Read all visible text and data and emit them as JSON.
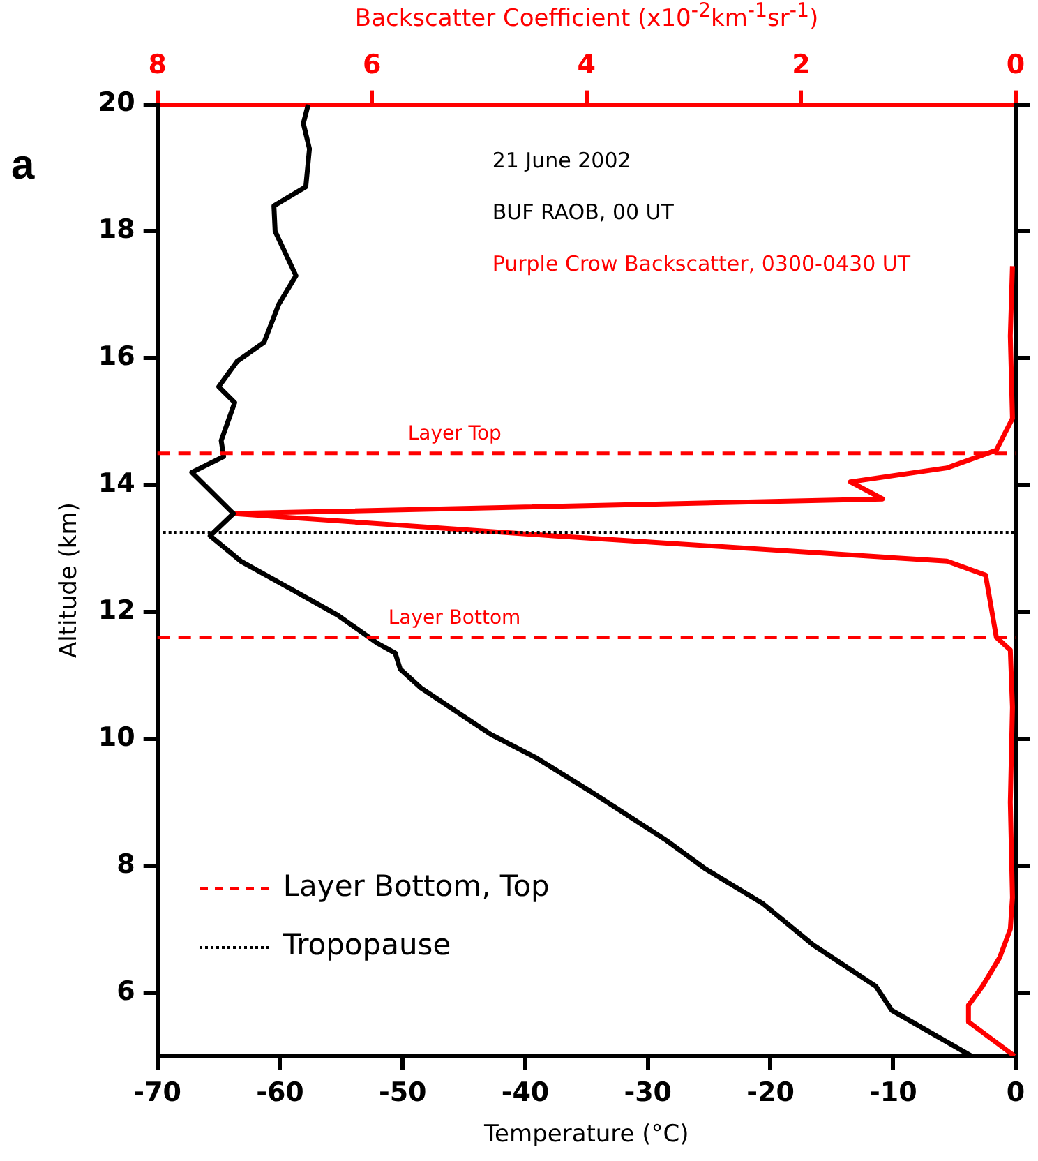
{
  "chart_data": {
    "type": "line",
    "xlabel": "Temperature (°C)",
    "ylabel": "Altitude (km)",
    "x2label": "Backscatter Coefficient (x10$^{-2}$km$^{-1}$sr$^{-1}$)",
    "xlim": [
      -70,
      0
    ],
    "xticks": [
      -70,
      -60,
      -50,
      -40,
      -30,
      -20,
      -10,
      0
    ],
    "x2lim": [
      8,
      0
    ],
    "x2ticks": [
      8,
      6,
      4,
      2,
      0
    ],
    "ylim": [
      5,
      20
    ],
    "yticks": [
      6,
      8,
      10,
      12,
      14,
      16,
      18,
      20
    ],
    "grid": false,
    "marker": "none",
    "line_style": "solid",
    "series": [
      {
        "color": "#000000",
        "x": [
          -57.7,
          -58.1,
          -57.6,
          -57.9,
          -60.5,
          -60.4,
          -58.7,
          -60.1,
          -61.3,
          -63.5,
          -65.0,
          -63.7,
          -64.8,
          -64.6,
          -67.2,
          -63.8,
          -65.7,
          -63.2,
          -59.0,
          -55.3,
          -52.0,
          -50.6,
          -50.2,
          -48.5,
          -42.8,
          -39.1,
          -34.5,
          -28.5,
          -25.3,
          -20.6,
          -16.5,
          -11.4,
          -10.1,
          -3.6
        ],
        "values": [
          20,
          19.7,
          19.3,
          18.7,
          18.4,
          18.0,
          17.3,
          16.85,
          16.25,
          15.95,
          15.55,
          15.3,
          14.7,
          14.45,
          14.2,
          13.55,
          13.2,
          12.8,
          12.35,
          11.95,
          11.5,
          11.35,
          11.1,
          10.8,
          10.07,
          9.7,
          9.15,
          8.4,
          7.95,
          7.4,
          6.75,
          6.1,
          5.72,
          5.0
        ]
      },
      {
        "color": "#ff0000",
        "axis": "x2",
        "x": [
          0.03,
          0.05,
          0.03,
          0.18,
          0.64,
          1.54,
          1.24,
          7.3,
          4.31,
          0.64,
          0.28,
          0.18,
          0.05,
          0.03,
          0.05,
          0.03,
          0.05,
          0.15,
          0.31,
          0.44,
          0.44,
          0.01
        ],
        "values": [
          17.45,
          16.35,
          15.05,
          14.55,
          14.27,
          14.05,
          13.78,
          13.55,
          13.2,
          12.8,
          12.58,
          11.6,
          11.4,
          10.5,
          9.0,
          7.5,
          7.0,
          6.55,
          6.1,
          5.8,
          5.54,
          5.0
        ]
      }
    ],
    "ref_lines": [
      {
        "axis": "y",
        "value": 14.5,
        "label": "Layer Top",
        "color": "#ff0000",
        "line_style": "dashed"
      },
      {
        "axis": "y",
        "value": 11.6,
        "label": "Layer Bottom",
        "color": "#ff0000",
        "line_style": "dashed"
      },
      {
        "axis": "y",
        "value": 13.25,
        "label": null,
        "color": "#000000",
        "line_style": "dotted"
      }
    ],
    "annotations": [
      "a",
      "21 June 2002",
      "BUF RAOB, 00 UT",
      "Purple Crow Backscatter, 0300-0430 UT",
      "Layer Bottom, Top",
      "Tropopause"
    ]
  }
}
